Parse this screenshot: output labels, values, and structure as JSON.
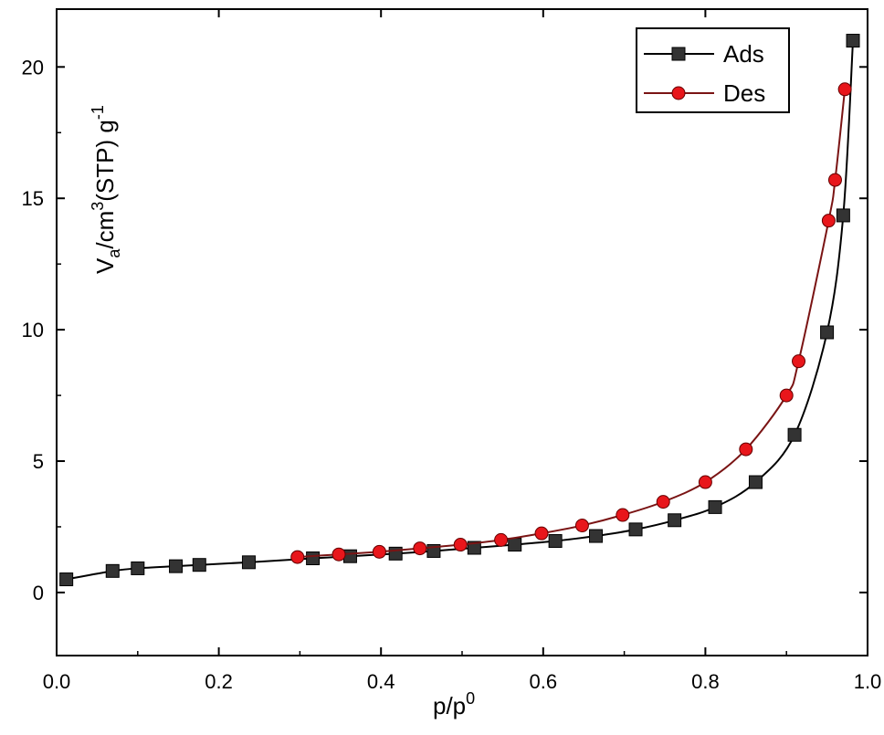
{
  "chart_data": {
    "type": "line",
    "title": "",
    "xlabel": {
      "base": "p/p",
      "sup": "0"
    },
    "ylabel": {
      "v": "V",
      "v_sub": "a",
      "unit1": "/cm",
      "unit1_sup": "3",
      "unit2": "(STP) g",
      "unit2_sup": "-1"
    },
    "xlim": [
      0.0,
      1.0
    ],
    "ylim": [
      -2.4,
      22.2
    ],
    "x_ticks": [
      "0.0",
      "0.2",
      "0.4",
      "0.6",
      "0.8",
      "1.0"
    ],
    "y_ticks": [
      "0",
      "5",
      "10",
      "15",
      "20"
    ],
    "legend_position": "top-right",
    "series": [
      {
        "name": "Ads",
        "marker": "square",
        "line_color": "#000000",
        "marker_color": "#333333",
        "x": [
          0.012,
          0.069,
          0.1,
          0.147,
          0.176,
          0.237,
          0.316,
          0.362,
          0.418,
          0.465,
          0.515,
          0.565,
          0.615,
          0.665,
          0.714,
          0.762,
          0.812,
          0.862,
          0.91,
          0.95,
          0.97,
          0.982
        ],
        "y": [
          0.5,
          0.82,
          0.92,
          1.0,
          1.05,
          1.15,
          1.3,
          1.38,
          1.48,
          1.58,
          1.7,
          1.82,
          1.96,
          2.15,
          2.4,
          2.75,
          3.25,
          4.2,
          6.0,
          9.9,
          14.35,
          21.0
        ]
      },
      {
        "name": "Des",
        "marker": "circle",
        "line_color": "#7a1414",
        "marker_color": "#e8161b",
        "x": [
          0.297,
          0.348,
          0.398,
          0.448,
          0.498,
          0.548,
          0.598,
          0.648,
          0.698,
          0.748,
          0.8,
          0.85,
          0.9,
          0.915,
          0.952,
          0.96,
          0.972
        ],
        "y": [
          1.35,
          1.45,
          1.55,
          1.68,
          1.82,
          2.0,
          2.25,
          2.55,
          2.95,
          3.45,
          4.2,
          5.45,
          7.5,
          8.8,
          14.15,
          15.7,
          19.15
        ]
      }
    ]
  }
}
